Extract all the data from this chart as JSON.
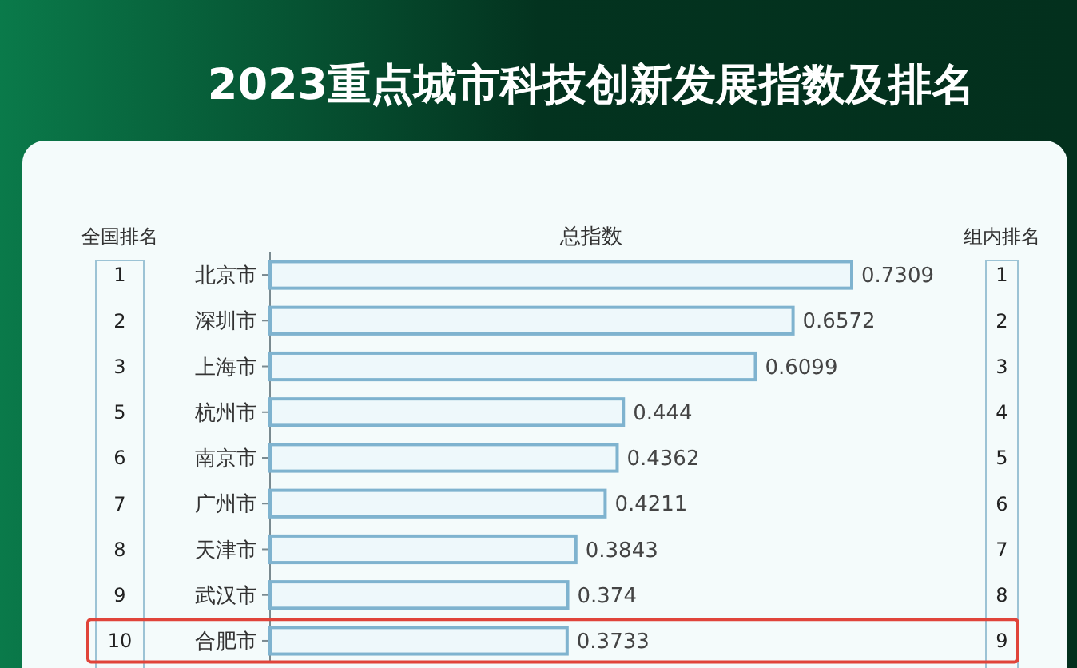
{
  "chart_data": {
    "type": "bar",
    "orientation": "horizontal",
    "title": "2023重点城市科技创新发展指数及排名",
    "xlabel": "总指数",
    "categories": [
      "北京市",
      "深圳市",
      "上海市",
      "杭州市",
      "南京市",
      "广州市",
      "天津市",
      "武汉市",
      "合肥市"
    ],
    "values": [
      0.7309,
      0.6572,
      0.6099,
      0.444,
      0.4362,
      0.4211,
      0.3843,
      0.374,
      0.3733
    ],
    "color": "#7fb3cf",
    "data_labels": true,
    "tick_labels": "y",
    "annotations": [
      "全国排名",
      "1",
      "2",
      "3",
      "5",
      "6",
      "7",
      "8",
      "9",
      "10",
      "组内排名",
      "1",
      "2",
      "3",
      "4",
      "5",
      "6",
      "7",
      "8",
      "9"
    ]
  }
}
